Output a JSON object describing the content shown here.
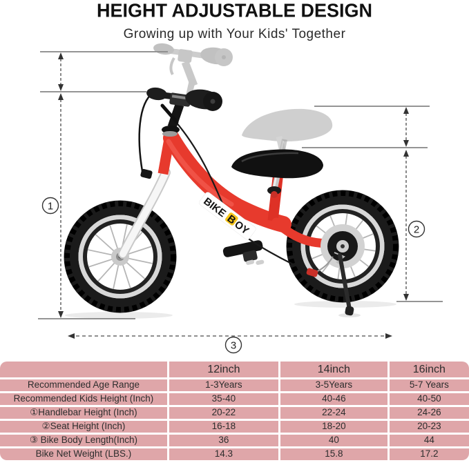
{
  "header": {
    "title": "HEIGHT ADJUSTABLE DESIGN",
    "subtitle": "Growing up with Your Kids' Together"
  },
  "diagram": {
    "brand": {
      "part1": "BIKE",
      "accent": "B",
      "part2": "OY"
    },
    "callouts": [
      "1",
      "2",
      "3"
    ],
    "colors": {
      "frame_red": "#e73a2d",
      "ghost_gray": "#a9a9a9",
      "measure_line": "#4f4f4f",
      "brand_accent_yellow": "#f6c51b"
    }
  },
  "table": {
    "colors": {
      "cell_pink": "#dfa6a9",
      "text": "#2d2d2d"
    },
    "columns": [
      "",
      "12inch",
      "14inch",
      "16inch"
    ],
    "rows": [
      {
        "label": "Recommended Age Range",
        "values": [
          "1-3Years",
          "3-5Years",
          "5-7 Years"
        ]
      },
      {
        "label": "Recommended Kids Height (Inch)",
        "values": [
          "35-40",
          "40-46",
          "40-50"
        ]
      },
      {
        "label": "①Handlebar Height (Inch)",
        "values": [
          "20-22",
          "22-24",
          "24-26"
        ]
      },
      {
        "label": "②Seat Height (Inch)",
        "values": [
          "16-18",
          "18-20",
          "20-23"
        ]
      },
      {
        "label": "③ Bike Body Length(Inch)",
        "values": [
          "36",
          "40",
          "44"
        ]
      },
      {
        "label": "Bike Net Weight (LBS.)",
        "values": [
          "14.3",
          "15.8",
          "17.2"
        ]
      }
    ]
  }
}
